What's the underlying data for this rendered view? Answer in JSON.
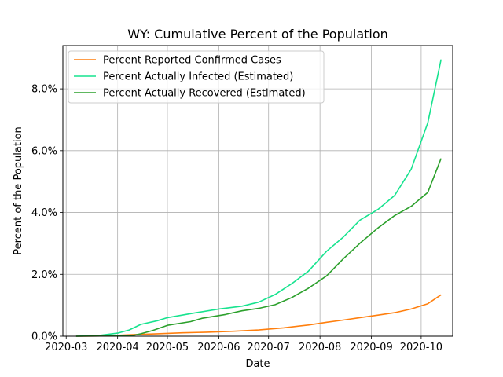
{
  "chart_data": {
    "type": "line",
    "title": "WY: Cumulative Percent of the Population",
    "xlabel": "Date",
    "ylabel": "Percent of the Population",
    "xlim": [
      "2020-02-28",
      "2020-10-20"
    ],
    "ylim": [
      0,
      9.4
    ],
    "grid": true,
    "legend_position": "top-left",
    "x_ticks": [
      "2020-03",
      "2020-04",
      "2020-05",
      "2020-06",
      "2020-07",
      "2020-08",
      "2020-09",
      "2020-10"
    ],
    "y_ticks": [
      {
        "value": 0,
        "label": "0.0%"
      },
      {
        "value": 2,
        "label": "2.0%"
      },
      {
        "value": 4,
        "label": "4.0%"
      },
      {
        "value": 6,
        "label": "6.0%"
      },
      {
        "value": 8,
        "label": "8.0%"
      }
    ],
    "series": [
      {
        "name": "Percent Reported Confirmed Cases",
        "color": "#ff7f0e",
        "points": [
          [
            "2020-03-07",
            0.0
          ],
          [
            "2020-03-25",
            0.01
          ],
          [
            "2020-04-10",
            0.05
          ],
          [
            "2020-04-25",
            0.08
          ],
          [
            "2020-05-10",
            0.11
          ],
          [
            "2020-05-25",
            0.13
          ],
          [
            "2020-06-10",
            0.16
          ],
          [
            "2020-06-25",
            0.2
          ],
          [
            "2020-07-10",
            0.27
          ],
          [
            "2020-07-25",
            0.36
          ],
          [
            "2020-08-05",
            0.45
          ],
          [
            "2020-08-15",
            0.52
          ],
          [
            "2020-08-25",
            0.6
          ],
          [
            "2020-09-05",
            0.68
          ],
          [
            "2020-09-15",
            0.76
          ],
          [
            "2020-09-25",
            0.88
          ],
          [
            "2020-10-05",
            1.05
          ],
          [
            "2020-10-13",
            1.34
          ]
        ]
      },
      {
        "name": "Percent Actually Infected (Estimated)",
        "color": "#17e38f",
        "points": [
          [
            "2020-03-07",
            0.0
          ],
          [
            "2020-03-20",
            0.02
          ],
          [
            "2020-04-01",
            0.1
          ],
          [
            "2020-04-08",
            0.2
          ],
          [
            "2020-04-15",
            0.38
          ],
          [
            "2020-04-25",
            0.5
          ],
          [
            "2020-05-01",
            0.6
          ],
          [
            "2020-05-15",
            0.73
          ],
          [
            "2020-06-01",
            0.88
          ],
          [
            "2020-06-15",
            0.97
          ],
          [
            "2020-06-25",
            1.1
          ],
          [
            "2020-07-05",
            1.35
          ],
          [
            "2020-07-15",
            1.7
          ],
          [
            "2020-07-25",
            2.1
          ],
          [
            "2020-08-05",
            2.75
          ],
          [
            "2020-08-15",
            3.2
          ],
          [
            "2020-08-25",
            3.75
          ],
          [
            "2020-09-05",
            4.1
          ],
          [
            "2020-09-15",
            4.55
          ],
          [
            "2020-09-25",
            5.4
          ],
          [
            "2020-10-05",
            6.9
          ],
          [
            "2020-10-13",
            8.95
          ]
        ]
      },
      {
        "name": "Percent Actually Recovered (Estimated)",
        "color": "#2ca02c",
        "points": [
          [
            "2020-03-07",
            0.0
          ],
          [
            "2020-04-10",
            0.02
          ],
          [
            "2020-04-15",
            0.08
          ],
          [
            "2020-04-22",
            0.18
          ],
          [
            "2020-05-01",
            0.35
          ],
          [
            "2020-05-15",
            0.47
          ],
          [
            "2020-05-22",
            0.58
          ],
          [
            "2020-06-05",
            0.7
          ],
          [
            "2020-06-15",
            0.82
          ],
          [
            "2020-06-25",
            0.9
          ],
          [
            "2020-07-05",
            1.02
          ],
          [
            "2020-07-15",
            1.25
          ],
          [
            "2020-07-25",
            1.55
          ],
          [
            "2020-08-05",
            1.95
          ],
          [
            "2020-08-15",
            2.5
          ],
          [
            "2020-08-25",
            3.0
          ],
          [
            "2020-09-05",
            3.5
          ],
          [
            "2020-09-15",
            3.9
          ],
          [
            "2020-09-25",
            4.2
          ],
          [
            "2020-10-05",
            4.65
          ],
          [
            "2020-10-13",
            5.75
          ]
        ]
      }
    ]
  }
}
